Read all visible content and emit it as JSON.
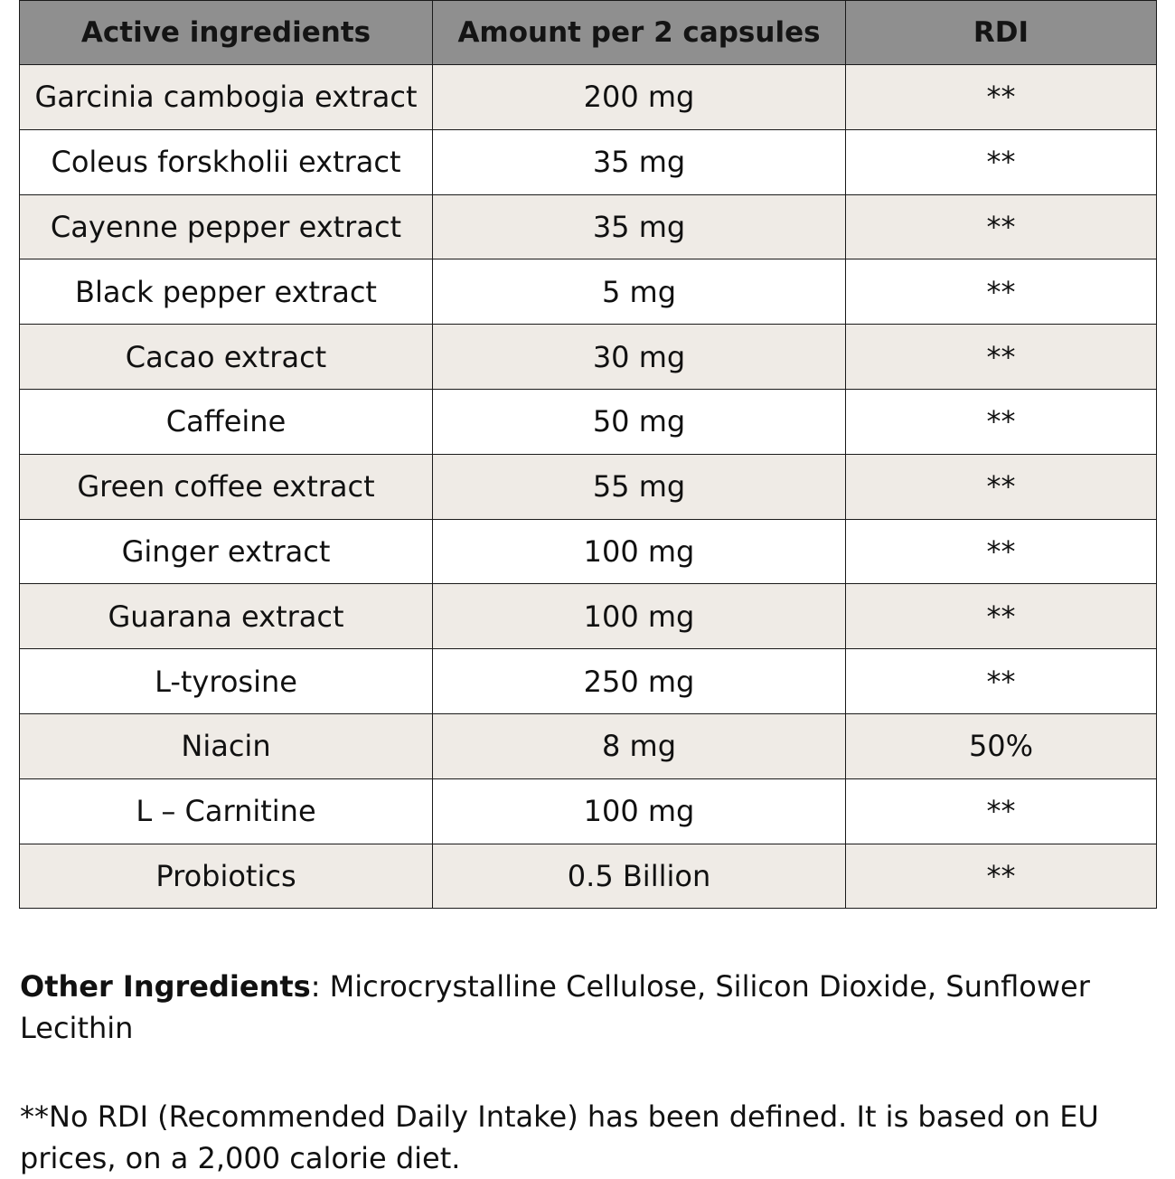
{
  "table": {
    "headers": {
      "ingredient": "Active ingredients",
      "amount": "Amount per 2 capsules",
      "rdi": "RDI"
    },
    "rows": [
      {
        "ingredient": "Garcinia cambogia extract",
        "amount": "200 mg",
        "rdi": "**"
      },
      {
        "ingredient": "Coleus forskholii extract",
        "amount": "35 mg",
        "rdi": "**"
      },
      {
        "ingredient": "Cayenne pepper extract",
        "amount": "35 mg",
        "rdi": "**"
      },
      {
        "ingredient": "Black pepper extract",
        "amount": "5 mg",
        "rdi": "**"
      },
      {
        "ingredient": "Cacao extract",
        "amount": "30 mg",
        "rdi": "**"
      },
      {
        "ingredient": "Caffeine",
        "amount": "50 mg",
        "rdi": "**"
      },
      {
        "ingredient": "Green coffee extract",
        "amount": "55 mg",
        "rdi": "**"
      },
      {
        "ingredient": "Ginger extract",
        "amount": "100 mg",
        "rdi": "**"
      },
      {
        "ingredient": "Guarana extract",
        "amount": "100 mg",
        "rdi": "**"
      },
      {
        "ingredient": "L-tyrosine",
        "amount": "250 mg",
        "rdi": "**"
      },
      {
        "ingredient": "Niacin",
        "amount": "8 mg",
        "rdi": "50%"
      },
      {
        "ingredient": "L – Carnitine",
        "amount": "100 mg",
        "rdi": "**"
      },
      {
        "ingredient": "Probiotics",
        "amount": "0.5 Billion",
        "rdi": "**"
      }
    ],
    "colors": {
      "header_bg": "#8f8f8f",
      "stripe_bg": "#efebe6",
      "border": "#1a1a1a"
    }
  },
  "other_ingredients": {
    "label": "Other Ingredients",
    "text": ": Microcrystalline Cellulose, Silicon Dioxide, Sunflower Lecithin"
  },
  "footnote": {
    "text": "**No RDI (Recommended Daily Intake) has been defined. It is based on EU prices, on a 2,000 calorie diet."
  }
}
